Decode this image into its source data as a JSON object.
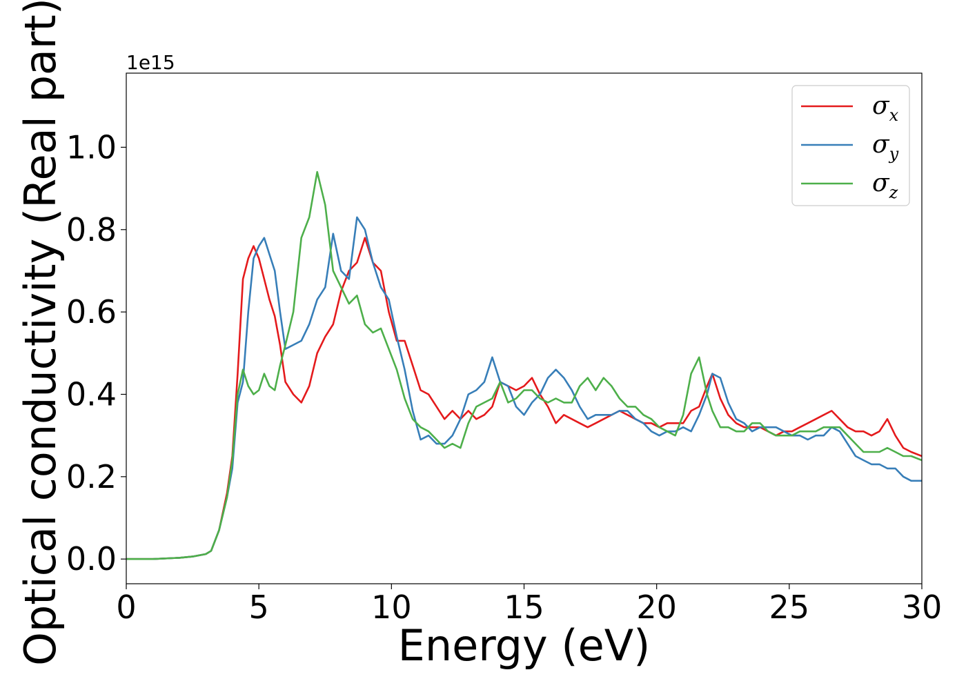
{
  "chart_data": {
    "type": "line",
    "xlabel": "Energy (eV)",
    "ylabel": "Optical conductivity (Real part)",
    "y_offset_label": "1e15",
    "xlim": [
      0,
      30
    ],
    "ylim": [
      -0.06,
      1.18
    ],
    "xticks": [
      0,
      5,
      10,
      15,
      20,
      25,
      30
    ],
    "yticks": [
      0.0,
      0.2,
      0.4,
      0.6,
      0.8,
      1.0
    ],
    "ytick_labels": [
      "0.0",
      "0.2",
      "0.4",
      "0.6",
      "0.8",
      "1.0"
    ],
    "grid": false,
    "legend_position": "top-right",
    "x": [
      0,
      1,
      2,
      2.5,
      3,
      3.2,
      3.5,
      3.8,
      4.0,
      4.2,
      4.4,
      4.6,
      4.8,
      5.0,
      5.2,
      5.4,
      5.6,
      5.8,
      6.0,
      6.3,
      6.6,
      6.9,
      7.2,
      7.5,
      7.8,
      8.1,
      8.4,
      8.7,
      9.0,
      9.3,
      9.6,
      9.9,
      10.2,
      10.5,
      10.8,
      11.1,
      11.4,
      11.7,
      12.0,
      12.3,
      12.6,
      12.9,
      13.2,
      13.5,
      13.8,
      14.1,
      14.4,
      14.7,
      15.0,
      15.3,
      15.6,
      15.9,
      16.2,
      16.5,
      16.8,
      17.1,
      17.4,
      17.7,
      18.0,
      18.3,
      18.6,
      18.9,
      19.2,
      19.5,
      19.8,
      20.1,
      20.4,
      20.7,
      21.0,
      21.3,
      21.6,
      21.9,
      22.1,
      22.4,
      22.7,
      23.0,
      23.3,
      23.6,
      23.9,
      24.2,
      24.5,
      24.8,
      25.1,
      25.4,
      25.7,
      26.0,
      26.3,
      26.6,
      26.9,
      27.2,
      27.5,
      27.8,
      28.1,
      28.4,
      28.7,
      29.0,
      29.3,
      29.6,
      30.0
    ],
    "series": [
      {
        "name": "σx",
        "color": "#e41a1c",
        "values": [
          0.0,
          0.0,
          0.003,
          0.006,
          0.012,
          0.02,
          0.07,
          0.16,
          0.25,
          0.45,
          0.68,
          0.73,
          0.76,
          0.73,
          0.68,
          0.63,
          0.59,
          0.52,
          0.43,
          0.4,
          0.38,
          0.42,
          0.5,
          0.54,
          0.57,
          0.65,
          0.7,
          0.72,
          0.78,
          0.72,
          0.7,
          0.6,
          0.53,
          0.53,
          0.47,
          0.41,
          0.4,
          0.37,
          0.34,
          0.36,
          0.34,
          0.36,
          0.34,
          0.35,
          0.37,
          0.43,
          0.42,
          0.41,
          0.42,
          0.44,
          0.4,
          0.37,
          0.33,
          0.35,
          0.34,
          0.33,
          0.32,
          0.33,
          0.34,
          0.35,
          0.36,
          0.35,
          0.34,
          0.33,
          0.33,
          0.32,
          0.33,
          0.33,
          0.33,
          0.36,
          0.37,
          0.42,
          0.45,
          0.39,
          0.35,
          0.33,
          0.32,
          0.32,
          0.32,
          0.31,
          0.3,
          0.31,
          0.31,
          0.32,
          0.33,
          0.34,
          0.35,
          0.36,
          0.34,
          0.32,
          0.31,
          0.31,
          0.3,
          0.31,
          0.34,
          0.3,
          0.27,
          0.26,
          0.25
        ]
      },
      {
        "name": "σy",
        "color": "#377eb8",
        "values": [
          0.0,
          0.0,
          0.003,
          0.006,
          0.012,
          0.02,
          0.07,
          0.15,
          0.22,
          0.38,
          0.43,
          0.6,
          0.73,
          0.76,
          0.78,
          0.74,
          0.7,
          0.6,
          0.51,
          0.52,
          0.53,
          0.57,
          0.63,
          0.66,
          0.79,
          0.7,
          0.68,
          0.83,
          0.8,
          0.72,
          0.66,
          0.63,
          0.54,
          0.46,
          0.36,
          0.29,
          0.3,
          0.28,
          0.28,
          0.3,
          0.34,
          0.4,
          0.41,
          0.43,
          0.49,
          0.43,
          0.42,
          0.37,
          0.35,
          0.38,
          0.4,
          0.44,
          0.46,
          0.44,
          0.41,
          0.37,
          0.34,
          0.35,
          0.35,
          0.35,
          0.36,
          0.36,
          0.34,
          0.33,
          0.31,
          0.3,
          0.31,
          0.31,
          0.32,
          0.31,
          0.35,
          0.4,
          0.45,
          0.44,
          0.38,
          0.34,
          0.33,
          0.31,
          0.32,
          0.32,
          0.32,
          0.31,
          0.3,
          0.3,
          0.29,
          0.3,
          0.3,
          0.32,
          0.31,
          0.28,
          0.25,
          0.24,
          0.23,
          0.23,
          0.22,
          0.22,
          0.2,
          0.19,
          0.19
        ]
      },
      {
        "name": "σz",
        "color": "#4daf4a",
        "values": [
          0.0,
          0.0,
          0.003,
          0.006,
          0.012,
          0.02,
          0.07,
          0.15,
          0.24,
          0.4,
          0.46,
          0.42,
          0.4,
          0.41,
          0.45,
          0.42,
          0.41,
          0.47,
          0.52,
          0.6,
          0.78,
          0.83,
          0.94,
          0.86,
          0.7,
          0.66,
          0.62,
          0.64,
          0.57,
          0.55,
          0.56,
          0.51,
          0.46,
          0.39,
          0.34,
          0.32,
          0.31,
          0.29,
          0.27,
          0.28,
          0.27,
          0.33,
          0.37,
          0.38,
          0.39,
          0.43,
          0.38,
          0.39,
          0.41,
          0.41,
          0.39,
          0.38,
          0.39,
          0.38,
          0.38,
          0.42,
          0.44,
          0.41,
          0.44,
          0.42,
          0.39,
          0.37,
          0.37,
          0.35,
          0.34,
          0.32,
          0.31,
          0.3,
          0.35,
          0.45,
          0.49,
          0.4,
          0.36,
          0.32,
          0.32,
          0.31,
          0.31,
          0.33,
          0.33,
          0.31,
          0.3,
          0.3,
          0.3,
          0.31,
          0.31,
          0.31,
          0.32,
          0.32,
          0.32,
          0.3,
          0.28,
          0.26,
          0.26,
          0.26,
          0.27,
          0.26,
          0.25,
          0.25,
          0.24
        ]
      }
    ]
  }
}
